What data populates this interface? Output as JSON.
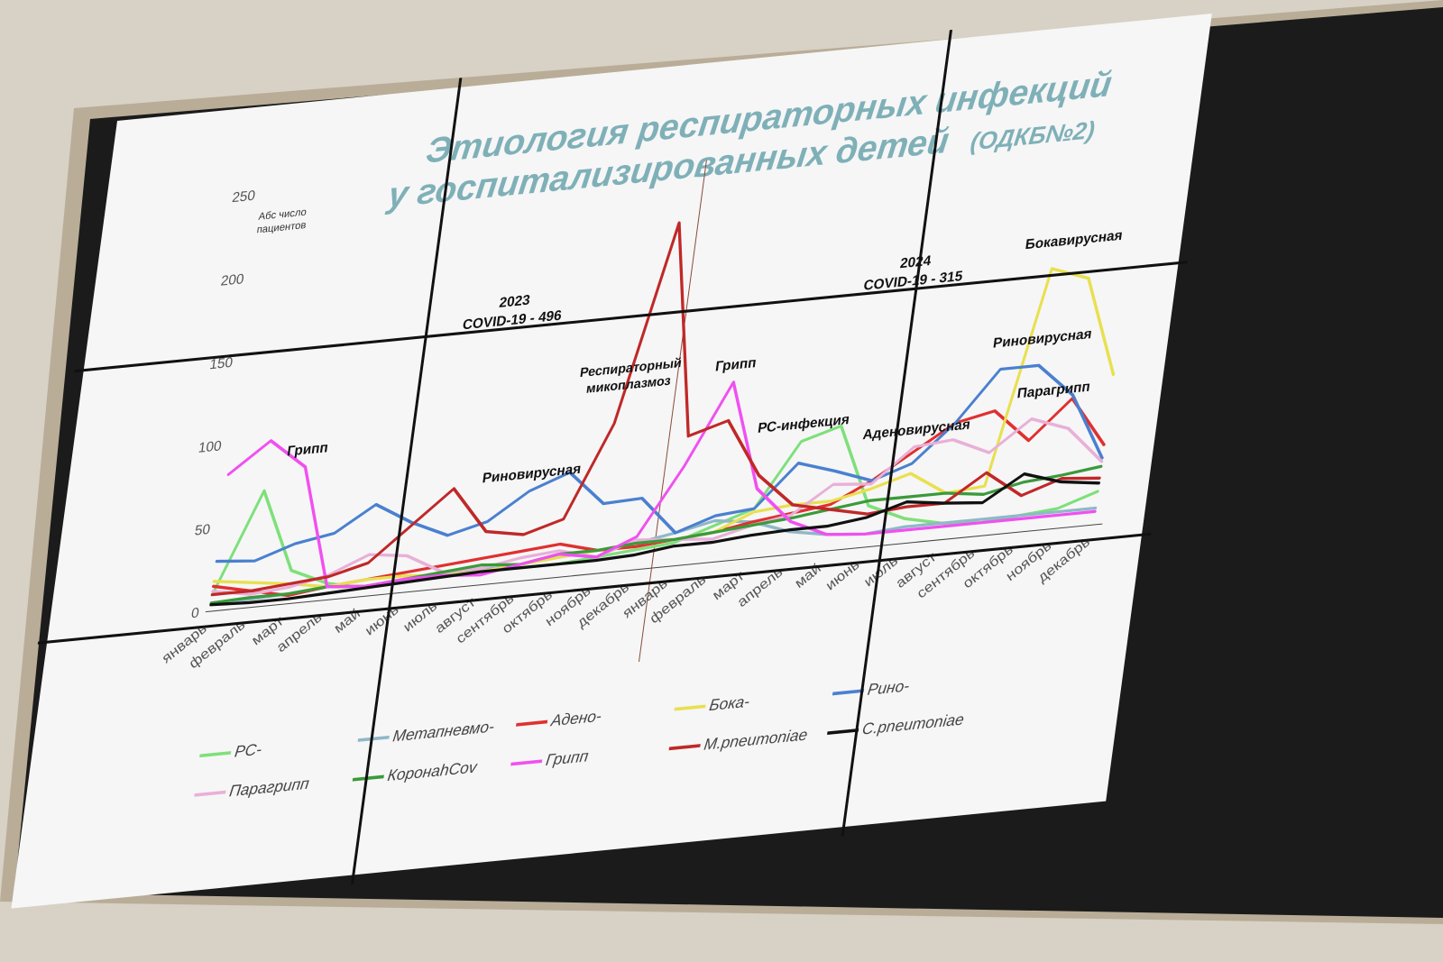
{
  "title": {
    "line1": "Этиология респираторных инфекций",
    "line2": "у госпитализированных детей",
    "suffix": "(ОДКБ№2)"
  },
  "colors": {
    "title": "#7fb0b8",
    "wall": "#d8d1c6",
    "frame": "#b9ad98",
    "bezel": "#1b1b1b",
    "slide": "#f6f6f6"
  },
  "chart_data": {
    "type": "line",
    "ylabel": "Абс число пациентов",
    "ylim": [
      0,
      250
    ],
    "yticks": [
      0,
      50,
      100,
      150,
      200,
      250
    ],
    "grid": false,
    "legend_position": "bottom",
    "categories": [
      "январь",
      "февраль",
      "март",
      "апрель",
      "май",
      "июнь",
      "июль",
      "август",
      "сентябрь",
      "октябрь",
      "ноябрь",
      "декабрь",
      "январь",
      "февраль",
      "март",
      "апрель",
      "май",
      "июнь",
      "июль",
      "август",
      "сентябрь",
      "октябрь",
      "ноябрь",
      "декабрь"
    ],
    "period_divider_after_index": 11,
    "period_notes": [
      {
        "year": "2023",
        "covid": "COVID-19 - 496"
      },
      {
        "year": "2024",
        "covid": "COVID-19 - 315"
      }
    ],
    "annotations": [
      {
        "text": "Грипп",
        "series": "Грипп",
        "index": 2
      },
      {
        "text": "Респираторный",
        "text2": "микоплазмоз",
        "series": "M.pneumoniae",
        "index": 10
      },
      {
        "text": "Риновирусная",
        "series": "Рино-",
        "index": 8
      },
      {
        "text": "Грипп",
        "series": "Грипп",
        "index": 13
      },
      {
        "text": "РС-инфекция",
        "series": "РС-",
        "index": 15
      },
      {
        "text": "Аденовирусная",
        "series": "Адено-",
        "index": 18
      },
      {
        "text": "Риновирусная",
        "series": "Рино-",
        "index": 21
      },
      {
        "text": "Парагрипп",
        "series": "Парагрипп",
        "index": 21
      },
      {
        "text": "Бокавирусная",
        "series": "Бока-",
        "index": 21
      }
    ],
    "series": [
      {
        "name": "РС-",
        "color": "#7ee07a",
        "values": [
          10,
          70,
          20,
          10,
          5,
          6,
          8,
          10,
          8,
          8,
          10,
          12,
          14,
          22,
          30,
          68,
          75,
          25,
          15,
          10,
          8,
          10,
          12,
          20
        ]
      },
      {
        "name": "Метапневмо-",
        "color": "#8fb8c8",
        "values": [
          5,
          5,
          6,
          8,
          6,
          7,
          8,
          9,
          10,
          12,
          14,
          16,
          20,
          25,
          22,
          14,
          10,
          8,
          10,
          10,
          10,
          10,
          10,
          10
        ]
      },
      {
        "name": "Адено-",
        "color": "#e03030",
        "values": [
          15,
          10,
          5,
          8,
          10,
          12,
          14,
          16,
          18,
          20,
          14,
          14,
          16,
          18,
          22,
          25,
          28,
          40,
          55,
          70,
          75,
          55,
          78,
          48
        ]
      },
      {
        "name": "Бока-",
        "color": "#e8e050",
        "values": [
          18,
          15,
          12,
          8,
          10,
          10,
          8,
          8,
          10,
          12,
          14,
          16,
          16,
          18,
          28,
          30,
          30,
          35,
          42,
          28,
          30,
          158,
          150,
          90
        ]
      },
      {
        "name": "Рино-",
        "color": "#4a80d0",
        "values": [
          30,
          28,
          36,
          40,
          55,
          42,
          32,
          38,
          54,
          63,
          42,
          43,
          20,
          28,
          30,
          55,
          48,
          40,
          48,
          70,
          100,
          100,
          80,
          40
        ]
      },
      {
        "name": "Парагрипп",
        "color": "#e8b0d8",
        "values": [
          12,
          8,
          10,
          15,
          25,
          22,
          10,
          10,
          14,
          16,
          10,
          18,
          16,
          14,
          20,
          24,
          40,
          38,
          58,
          60,
          50,
          68,
          60,
          38
        ]
      },
      {
        "name": "КоронаhCov",
        "color": "#3a9a3a",
        "values": [
          5,
          6,
          6,
          8,
          6,
          8,
          10,
          12,
          10,
          14,
          14,
          16,
          16,
          18,
          20,
          22,
          25,
          28,
          28,
          28,
          25,
          30,
          32,
          35
        ]
      },
      {
        "name": "Грипп",
        "color": "#f050f0",
        "values": [
          82,
          100,
          82,
          8,
          6,
          8,
          8,
          6,
          10,
          14,
          10,
          20,
          60,
          108,
          42,
          20,
          10,
          8,
          8,
          8,
          8,
          8,
          8,
          8
        ]
      },
      {
        "name": "M.pneumoniae",
        "color": "#c02828",
        "values": [
          10,
          10,
          12,
          14,
          20,
          40,
          60,
          32,
          28,
          35,
          90,
          208,
          78,
          85,
          50,
          30,
          25,
          20,
          22,
          22,
          38,
          22,
          30,
          28
        ]
      },
      {
        "name": "C.pneumoniae",
        "color": "#111111",
        "values": [
          4,
          3,
          3,
          4,
          5,
          6,
          7,
          8,
          8,
          8,
          8,
          9,
          12,
          12,
          14,
          15,
          15,
          18,
          25,
          22,
          20,
          35,
          28,
          25
        ]
      }
    ]
  }
}
